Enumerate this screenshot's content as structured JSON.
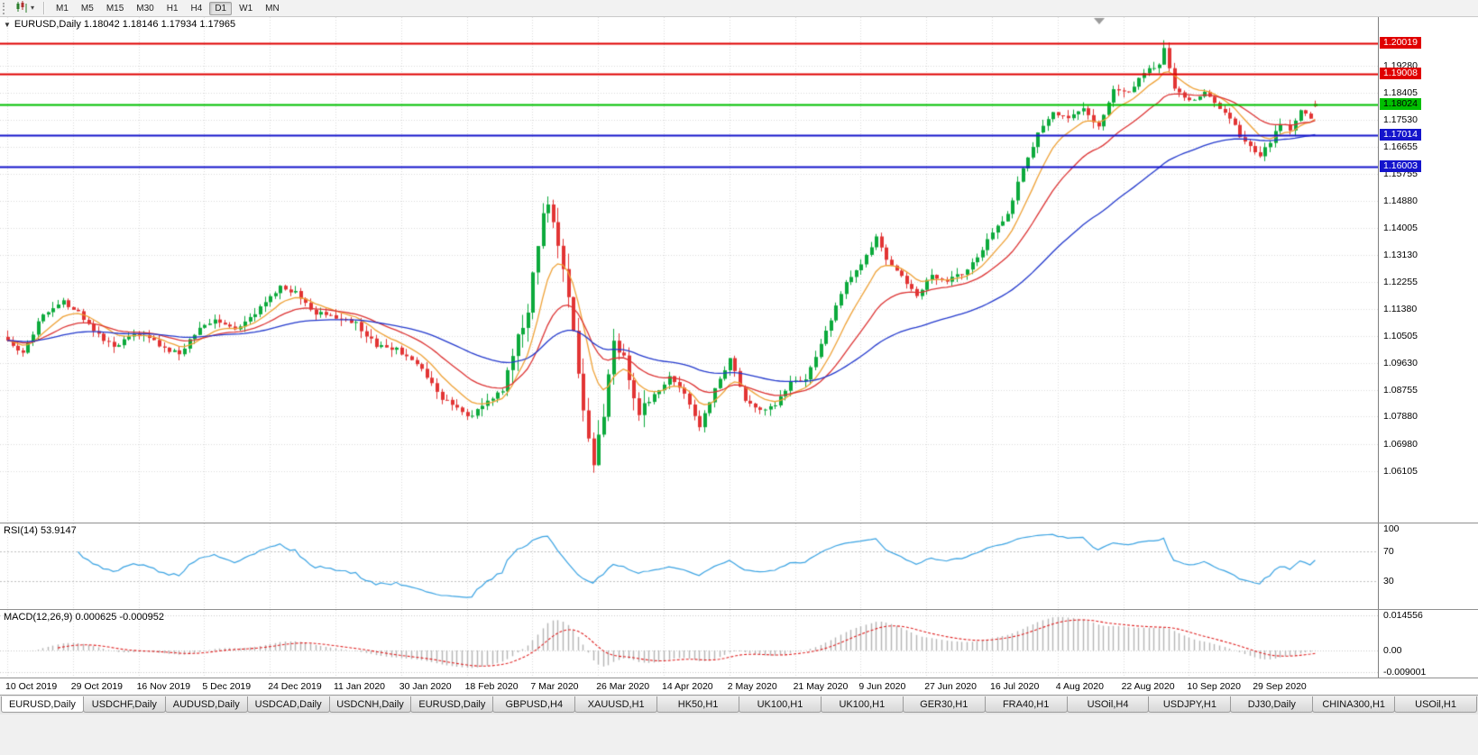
{
  "icons": {
    "collapse": "▼",
    "caret": "▾"
  },
  "toolbar": {
    "timeframes": [
      {
        "label": "M1",
        "active": false
      },
      {
        "label": "M5",
        "active": false
      },
      {
        "label": "M15",
        "active": false
      },
      {
        "label": "M30",
        "active": false
      },
      {
        "label": "H1",
        "active": false
      },
      {
        "label": "H4",
        "active": false
      },
      {
        "label": "D1",
        "active": true
      },
      {
        "label": "W1",
        "active": false
      },
      {
        "label": "MN",
        "active": false
      }
    ]
  },
  "chart_header": {
    "info": "EURUSD,Daily 1.18042 1.18146 1.17934 1.17965"
  },
  "rsi_header": "RSI(14) 53.9147",
  "macd_header": "MACD(12,26,9) 0.000625 -0.000952",
  "tabs": [
    {
      "label": "EURUSD,Daily",
      "active": true
    },
    {
      "label": "USDCHF,Daily",
      "active": false
    },
    {
      "label": "AUDUSD,Daily",
      "active": false
    },
    {
      "label": "USDCAD,Daily",
      "active": false
    },
    {
      "label": "USDCNH,Daily",
      "active": false
    },
    {
      "label": "EURUSD,Daily",
      "active": false
    },
    {
      "label": "GBPUSD,H4",
      "active": false
    },
    {
      "label": "XAUUSD,H1",
      "active": false
    },
    {
      "label": "HK50,H1",
      "active": false
    },
    {
      "label": "UK100,H1",
      "active": false
    },
    {
      "label": "UK100,H1",
      "active": false
    },
    {
      "label": "GER30,H1",
      "active": false
    },
    {
      "label": "FRA40,H1",
      "active": false
    },
    {
      "label": "USOil,H4",
      "active": false
    },
    {
      "label": "USDJPY,H1",
      "active": false
    },
    {
      "label": "DJ30,Daily",
      "active": false
    },
    {
      "label": "CHINA300,H1",
      "active": false
    },
    {
      "label": "USOil,H1",
      "active": false
    }
  ],
  "chart_data": {
    "type": "candlestick",
    "symbol": "EURUSD",
    "timeframe": "Daily",
    "ohlc_current": {
      "open": 1.18042,
      "high": 1.18146,
      "low": 1.17934,
      "close": 1.17965
    },
    "grid_color": "#dadada",
    "colors": {
      "up": "#0caa3c",
      "down": "#e23434"
    },
    "bars_total": 260,
    "price_axis": {
      "min": 1.0444,
      "max": 1.2086,
      "ticks": [
        "1.19280",
        "1.18405",
        "1.17530",
        "1.16655",
        "1.15755",
        "1.14880",
        "1.14005",
        "1.13130",
        "1.12255",
        "1.11380",
        "1.10505",
        "1.09630",
        "1.08755",
        "1.07880",
        "1.06980",
        "1.06105"
      ]
    },
    "levels": [
      {
        "price": 1.20019,
        "label": "1.20019",
        "color": "#e00000",
        "text_color": "#ffffff",
        "width": 2
      },
      {
        "price": 1.19008,
        "label": "1.19008",
        "color": "#e00000",
        "text_color": "#ffffff",
        "width": 2
      },
      {
        "price": 1.18024,
        "label": "1.18024",
        "color": "#00bf00",
        "text_color": "#000000",
        "width": 2
      },
      {
        "price": 1.17014,
        "label": "1.17014",
        "color": "#1414cc",
        "text_color": "#ffffff",
        "width": 2
      },
      {
        "price": 1.16003,
        "label": "1.16003",
        "color": "#1414cc",
        "text_color": "#ffffff",
        "width": 2
      }
    ],
    "moving_averages": [
      {
        "period": 9,
        "color": "#efa135"
      },
      {
        "period": 21,
        "color": "#dd3434"
      },
      {
        "period": 55,
        "color": "#2339cd"
      }
    ],
    "x_ticks": [
      {
        "index": 0,
        "label": "10 Oct 2019"
      },
      {
        "index": 13,
        "label": "29 Oct 2019"
      },
      {
        "index": 26,
        "label": "16 Nov 2019"
      },
      {
        "index": 39,
        "label": "5 Dec 2019"
      },
      {
        "index": 52,
        "label": "24 Dec 2019"
      },
      {
        "index": 65,
        "label": "11 Jan 2020"
      },
      {
        "index": 78,
        "label": "30 Jan 2020"
      },
      {
        "index": 91,
        "label": "18 Feb 2020"
      },
      {
        "index": 104,
        "label": "7 Mar 2020"
      },
      {
        "index": 117,
        "label": "26 Mar 2020"
      },
      {
        "index": 130,
        "label": "14 Apr 2020"
      },
      {
        "index": 143,
        "label": "2 May 2020"
      },
      {
        "index": 156,
        "label": "21 May 2020"
      },
      {
        "index": 169,
        "label": "9 Jun 2020"
      },
      {
        "index": 182,
        "label": "27 Jun 2020"
      },
      {
        "index": 195,
        "label": "16 Jul 2020"
      },
      {
        "index": 208,
        "label": "4 Aug 2020"
      },
      {
        "index": 221,
        "label": "22 Aug 2020"
      },
      {
        "index": 234,
        "label": "10 Sep 2020"
      },
      {
        "index": 247,
        "label": "29 Sep 2020"
      }
    ],
    "price_anchors": [
      [
        0,
        1.103
      ],
      [
        3,
        1.0995
      ],
      [
        7,
        1.1125
      ],
      [
        11,
        1.116
      ],
      [
        14,
        1.1125
      ],
      [
        17,
        1.107
      ],
      [
        21,
        1.101
      ],
      [
        25,
        1.1062
      ],
      [
        28,
        1.1045
      ],
      [
        31,
        1.1008
      ],
      [
        34,
        1.0992
      ],
      [
        38,
        1.1082
      ],
      [
        41,
        1.1102
      ],
      [
        45,
        1.1068
      ],
      [
        49,
        1.1125
      ],
      [
        54,
        1.1212
      ],
      [
        57,
        1.119
      ],
      [
        61,
        1.1125
      ],
      [
        65,
        1.1108
      ],
      [
        69,
        1.109
      ],
      [
        73,
        1.1022
      ],
      [
        77,
        1.1005
      ],
      [
        81,
        1.0962
      ],
      [
        86,
        1.0845
      ],
      [
        92,
        1.0788
      ],
      [
        95,
        1.0842
      ],
      [
        98,
        1.0872
      ],
      [
        100,
        1.1
      ],
      [
        103,
        1.1135
      ],
      [
        106,
        1.1455
      ],
      [
        107,
        1.1475
      ],
      [
        109,
        1.134
      ],
      [
        111,
        1.1175
      ],
      [
        113,
        1.093
      ],
      [
        115,
        1.0715
      ],
      [
        116,
        1.0645
      ],
      [
        118,
        1.0795
      ],
      [
        120,
        1.1035
      ],
      [
        122,
        1.0985
      ],
      [
        125,
        1.0795
      ],
      [
        128,
        1.0862
      ],
      [
        131,
        1.0915
      ],
      [
        134,
        1.0868
      ],
      [
        137,
        1.076
      ],
      [
        140,
        1.0875
      ],
      [
        143,
        1.0975
      ],
      [
        146,
        1.0842
      ],
      [
        149,
        1.0812
      ],
      [
        152,
        1.0825
      ],
      [
        155,
        1.0898
      ],
      [
        158,
        1.0905
      ],
      [
        160,
        1.0982
      ],
      [
        163,
        1.1105
      ],
      [
        166,
        1.1228
      ],
      [
        169,
        1.1288
      ],
      [
        172,
        1.1372
      ],
      [
        174,
        1.1302
      ],
      [
        177,
        1.1242
      ],
      [
        180,
        1.1185
      ],
      [
        183,
        1.1248
      ],
      [
        186,
        1.1232
      ],
      [
        189,
        1.1255
      ],
      [
        192,
        1.1302
      ],
      [
        195,
        1.1388
      ],
      [
        198,
        1.1442
      ],
      [
        201,
        1.1598
      ],
      [
        204,
        1.1705
      ],
      [
        207,
        1.1778
      ],
      [
        210,
        1.1762
      ],
      [
        213,
        1.1792
      ],
      [
        216,
        1.1725
      ],
      [
        219,
        1.1848
      ],
      [
        222,
        1.1842
      ],
      [
        225,
        1.1902
      ],
      [
        228,
        1.1938
      ],
      [
        229,
        1.1988
      ],
      [
        231,
        1.1852
      ],
      [
        233,
        1.1822
      ],
      [
        235,
        1.1818
      ],
      [
        237,
        1.1842
      ],
      [
        240,
        1.1792
      ],
      [
        242,
        1.1762
      ],
      [
        244,
        1.1702
      ],
      [
        246,
        1.1662
      ],
      [
        248,
        1.1632
      ],
      [
        250,
        1.1682
      ],
      [
        252,
        1.1742
      ],
      [
        254,
        1.1722
      ],
      [
        256,
        1.1782
      ],
      [
        258,
        1.1762
      ],
      [
        259,
        1.17965
      ]
    ],
    "rsi": {
      "period": 14,
      "value": "53.9147",
      "color": "#3aa3e3",
      "axis_ticks": [
        "100",
        "70",
        "30"
      ]
    },
    "macd": {
      "fast": 12,
      "slow": 26,
      "signal_period": 9,
      "value": "0.000625",
      "signal_value": "-0.000952",
      "hist_color": "#b5b5b5",
      "signal_color": "#e02020",
      "range": [
        -0.009001,
        0.014556
      ],
      "axis_ticks": [
        "0.014556",
        "0.00",
        "-0.009001"
      ]
    }
  }
}
